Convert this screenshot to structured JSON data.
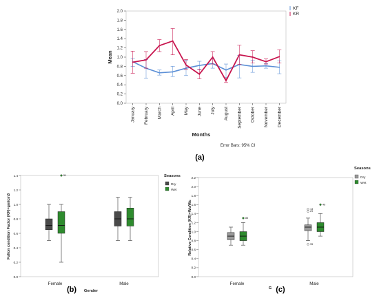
{
  "chart_data": [
    {
      "panel": "(a)",
      "type": "line",
      "xlabel": "Months",
      "ylabel": "Mean",
      "categories": [
        "January",
        "February",
        "March",
        "April",
        "May",
        "June",
        "July",
        "August",
        "September",
        "October",
        "November",
        "December"
      ],
      "ylim": [
        0.0,
        2.0
      ],
      "yticks": [
        "0.0",
        "0.2",
        "0.4",
        "0.6",
        "0.8",
        "1.0",
        "1.2",
        "1.4",
        "1.6",
        "1.8",
        "2.0"
      ],
      "footnote": "Error Bars: 95% CI",
      "legend_position": "top-right",
      "series": [
        {
          "name": "KF",
          "color": "#5b8fd6",
          "values": [
            0.9,
            0.76,
            0.66,
            0.68,
            0.76,
            0.82,
            0.86,
            0.72,
            0.84,
            0.8,
            0.81,
            0.78
          ],
          "err_low": [
            0.8,
            0.54,
            0.61,
            0.58,
            0.6,
            0.73,
            0.76,
            0.56,
            0.55,
            0.67,
            0.76,
            0.64
          ],
          "err_high": [
            0.97,
            0.95,
            0.72,
            0.8,
            0.93,
            0.91,
            0.96,
            0.85,
            1.04,
            0.93,
            0.86,
            0.92
          ]
        },
        {
          "name": "KR",
          "color": "#c8164f",
          "values": [
            0.89,
            0.94,
            1.25,
            1.35,
            0.83,
            0.63,
            1.0,
            0.49,
            1.05,
            1.0,
            0.9,
            1.01
          ],
          "err_low": [
            0.65,
            0.76,
            1.12,
            1.05,
            0.73,
            0.53,
            0.85,
            0.45,
            0.84,
            0.87,
            0.85,
            0.87
          ],
          "err_high": [
            1.13,
            1.12,
            1.38,
            1.62,
            0.95,
            0.74,
            1.12,
            0.54,
            1.26,
            1.14,
            0.96,
            1.16
          ]
        }
      ]
    },
    {
      "panel": "(b)",
      "type": "box",
      "xlabel": "Gender",
      "ylabel": "Fulton condition Factor (KF)=gm/cm3",
      "categories": [
        "Female",
        "Male"
      ],
      "ylim": [
        0.0,
        1.4
      ],
      "yticks": [
        "0.0",
        "0.2",
        "0.4",
        "0.6",
        "0.8",
        "1.0",
        "1.2",
        "1.4"
      ],
      "legend_title": "Seasons",
      "legend_position": "right",
      "series": [
        {
          "name": "Dry",
          "color": "#4a4a4a",
          "boxes": [
            {
              "min": 0.5,
              "q1": 0.65,
              "median": 0.71,
              "q3": 0.8,
              "max": 1.0
            },
            {
              "min": 0.5,
              "q1": 0.7,
              "median": 0.8,
              "q3": 0.9,
              "max": 1.1
            }
          ]
        },
        {
          "name": "Wet",
          "color": "#2e8b2e",
          "boxes": [
            {
              "min": 0.2,
              "q1": 0.6,
              "median": 0.71,
              "q3": 0.9,
              "max": 1.0,
              "outlier": 1.4,
              "outlier_label": "51"
            },
            {
              "min": 0.5,
              "q1": 0.7,
              "median": 0.8,
              "q3": 0.95,
              "max": 1.1
            }
          ]
        }
      ]
    },
    {
      "panel": "(c)",
      "type": "box",
      "xlabel": "G",
      "ylabel": "Relative Condition (KR)=Wo/Wc",
      "categories": [
        "Female",
        "Male"
      ],
      "ylim": [
        0.0,
        2.2
      ],
      "yticks": [
        "0.0",
        "0.2",
        "0.4",
        "0.6",
        "0.8",
        "1.0",
        "1.2",
        "1.4",
        "1.6",
        "1.8",
        "2.0",
        "2.2"
      ],
      "legend_title": "Seasons",
      "legend_position": "right",
      "series": [
        {
          "name": "Dry",
          "color": "#9a9a9a",
          "boxes": [
            {
              "min": 0.7,
              "q1": 0.82,
              "median": 0.9,
              "q3": 0.98,
              "max": 1.1
            },
            {
              "min": 0.8,
              "q1": 1.02,
              "median": 1.1,
              "q3": 1.15,
              "max": 1.3,
              "outliers": [
                {
                  "v": 1.5,
                  "label": "13"
                },
                {
                  "v": 1.45,
                  "label": "29"
                },
                {
                  "v": 0.72,
                  "label": "95"
                }
              ]
            }
          ]
        },
        {
          "name": "Wet",
          "color": "#2e8b2e",
          "boxes": [
            {
              "min": 0.7,
              "q1": 0.8,
              "median": 0.9,
              "q3": 1.0,
              "max": 1.2,
              "outlier": 1.3,
              "outlier_label": "85"
            },
            {
              "min": 0.9,
              "q1": 1.0,
              "median": 1.1,
              "q3": 1.2,
              "max": 1.4,
              "outlier": 1.6,
              "outlier_label": "46"
            }
          ]
        }
      ]
    }
  ],
  "captions": {
    "a": "(a)",
    "b": "(b)",
    "c": "(c)"
  }
}
